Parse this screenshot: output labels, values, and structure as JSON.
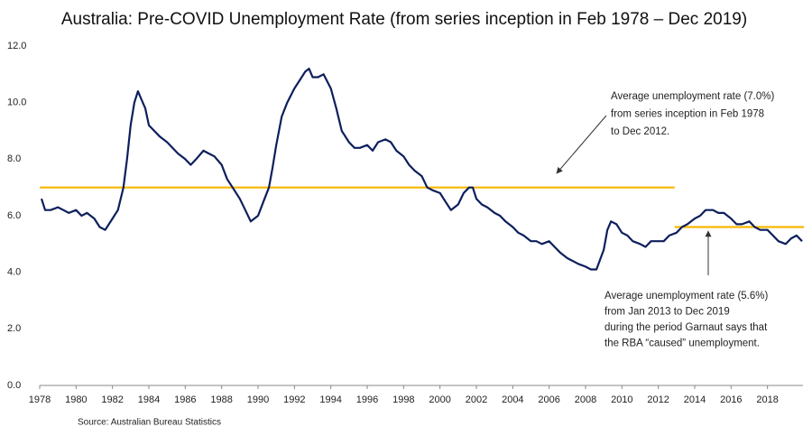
{
  "chart_data": {
    "type": "line",
    "title": "Australia: Pre-COVID Unemployment Rate (from series inception in Feb 1978 – Dec 2019)",
    "source": "Source: Australian Bureau Statistics",
    "color": "#0d1f5c",
    "x": [
      1978.1,
      1978.3,
      1978.6,
      1979.0,
      1979.3,
      1979.6,
      1980.0,
      1980.3,
      1980.6,
      1981.0,
      1981.3,
      1981.6,
      1982.0,
      1982.3,
      1982.6,
      1982.8,
      1983.0,
      1983.2,
      1983.4,
      1983.6,
      1983.8,
      1984.0,
      1984.3,
      1984.6,
      1985.0,
      1985.3,
      1985.6,
      1986.0,
      1986.3,
      1986.6,
      1987.0,
      1987.3,
      1987.6,
      1988.0,
      1988.3,
      1988.6,
      1989.0,
      1989.3,
      1989.6,
      1990.0,
      1990.3,
      1990.6,
      1990.8,
      1991.0,
      1991.3,
      1991.6,
      1992.0,
      1992.3,
      1992.6,
      1992.8,
      1993.0,
      1993.3,
      1993.6,
      1994.0,
      1994.3,
      1994.6,
      1995.0,
      1995.3,
      1995.6,
      1996.0,
      1996.3,
      1996.6,
      1997.0,
      1997.3,
      1997.6,
      1998.0,
      1998.3,
      1998.6,
      1999.0,
      1999.3,
      1999.6,
      2000.0,
      2000.3,
      2000.6,
      2001.0,
      2001.3,
      2001.6,
      2001.8,
      2002.0,
      2002.3,
      2002.6,
      2003.0,
      2003.3,
      2003.6,
      2004.0,
      2004.3,
      2004.6,
      2005.0,
      2005.3,
      2005.6,
      2006.0,
      2006.3,
      2006.6,
      2007.0,
      2007.3,
      2007.6,
      2008.0,
      2008.3,
      2008.6,
      2009.0,
      2009.2,
      2009.4,
      2009.7,
      2010.0,
      2010.3,
      2010.6,
      2011.0,
      2011.3,
      2011.6,
      2012.0,
      2012.3,
      2012.6,
      2013.0,
      2013.3,
      2013.6,
      2014.0,
      2014.3,
      2014.6,
      2015.0,
      2015.3,
      2015.6,
      2016.0,
      2016.3,
      2016.6,
      2017.0,
      2017.3,
      2017.6,
      2018.0,
      2018.3,
      2018.6,
      2019.0,
      2019.3,
      2019.6,
      2019.9
    ],
    "values": [
      6.6,
      6.2,
      6.2,
      6.3,
      6.2,
      6.1,
      6.2,
      6.0,
      6.1,
      5.9,
      5.6,
      5.5,
      5.9,
      6.2,
      7.0,
      8.0,
      9.2,
      10.0,
      10.4,
      10.1,
      9.8,
      9.2,
      9.0,
      8.8,
      8.6,
      8.4,
      8.2,
      8.0,
      7.8,
      8.0,
      8.3,
      8.2,
      8.1,
      7.8,
      7.3,
      7.0,
      6.6,
      6.2,
      5.8,
      6.0,
      6.5,
      7.0,
      7.7,
      8.5,
      9.5,
      10.0,
      10.5,
      10.8,
      11.1,
      11.2,
      10.9,
      10.9,
      11.0,
      10.5,
      9.8,
      9.0,
      8.6,
      8.4,
      8.4,
      8.5,
      8.3,
      8.6,
      8.7,
      8.6,
      8.3,
      8.1,
      7.8,
      7.6,
      7.4,
      7.0,
      6.9,
      6.8,
      6.5,
      6.2,
      6.4,
      6.8,
      7.0,
      7.0,
      6.6,
      6.4,
      6.3,
      6.1,
      6.0,
      5.8,
      5.6,
      5.4,
      5.3,
      5.1,
      5.1,
      5.0,
      5.1,
      4.9,
      4.7,
      4.5,
      4.4,
      4.3,
      4.2,
      4.1,
      4.1,
      4.8,
      5.5,
      5.8,
      5.7,
      5.4,
      5.3,
      5.1,
      5.0,
      4.9,
      5.1,
      5.1,
      5.1,
      5.3,
      5.4,
      5.6,
      5.7,
      5.9,
      6.0,
      6.2,
      6.2,
      6.1,
      6.1,
      5.9,
      5.7,
      5.7,
      5.8,
      5.6,
      5.5,
      5.5,
      5.3,
      5.1,
      5.0,
      5.2,
      5.3,
      5.1
    ],
    "reference_lines": [
      {
        "value": 7.0,
        "from": 1978.0,
        "to": 2012.9,
        "color": "#f5b800"
      },
      {
        "value": 5.6,
        "from": 2012.9,
        "to": 2020.0,
        "color": "#f5b800"
      }
    ],
    "annotations": [
      {
        "lines": [
          "Average unemployment rate (7.0%)",
          "from series inception in Feb 1978",
          "to Dec 2012."
        ]
      },
      {
        "lines": [
          "Average unemployment rate (5.6%)",
          "from Jan 2013 to Dec 2019",
          "during the period Garnaut says that",
          "the RBA “caused” unemployment."
        ]
      }
    ],
    "xlim": [
      1978,
      2020
    ],
    "xticks": [
      1978,
      1980,
      1982,
      1984,
      1986,
      1988,
      1990,
      1992,
      1994,
      1996,
      1998,
      2000,
      2002,
      2004,
      2006,
      2008,
      2010,
      2012,
      2014,
      2016,
      2018
    ],
    "ylim": [
      0,
      12
    ],
    "yticks": [
      {
        "value": 0,
        "label": "0.0"
      },
      {
        "value": 2,
        "label": "2.0"
      },
      {
        "value": 4,
        "label": "4.0"
      },
      {
        "value": 6,
        "label": "6.0"
      },
      {
        "value": 8,
        "label": "8.0"
      },
      {
        "value": 10,
        "label": "10.0"
      },
      {
        "value": 12,
        "label": "12.0"
      }
    ],
    "grid": false
  }
}
